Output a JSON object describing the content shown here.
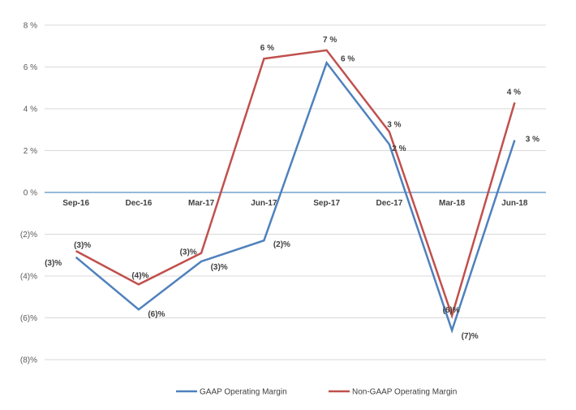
{
  "chart_data": {
    "type": "line",
    "categories": [
      "Sep-16",
      "Dec-16",
      "Mar-17",
      "Jun-17",
      "Sep-17",
      "Dec-17",
      "Mar-18",
      "Jun-18"
    ],
    "ylim": [
      -8,
      8
    ],
    "yticks": [
      8,
      6,
      4,
      2,
      0,
      -2,
      -4,
      -6,
      -8
    ],
    "ytick_labels": [
      "8 %",
      "6 %",
      "4 %",
      "2 %",
      "0 %",
      "(2)%",
      "(4)%",
      "(6)%",
      "(8)%"
    ],
    "grid": true,
    "legend_position": "bottom",
    "series": [
      {
        "name": "GAAP Operating Margin",
        "color": "#4F81BD",
        "values": [
          -3.1,
          -5.6,
          -3.3,
          -2.3,
          6.2,
          2.3,
          -6.6,
          2.5
        ],
        "labels": [
          "(3)%",
          "(6)%",
          "(3)%",
          "(2)%",
          "6 %",
          "2 %",
          "(7)%",
          "3 %"
        ]
      },
      {
        "name": "Non-GAAP Operating Margin",
        "color": "#C0504D",
        "values": [
          -2.8,
          -4.4,
          -2.9,
          6.4,
          6.8,
          2.9,
          -5.9,
          4.3
        ],
        "labels": [
          "(3)%",
          "(4)%",
          "(3)%",
          "6 %",
          "7 %",
          "3 %",
          "(6)%",
          "4 %"
        ]
      }
    ]
  }
}
